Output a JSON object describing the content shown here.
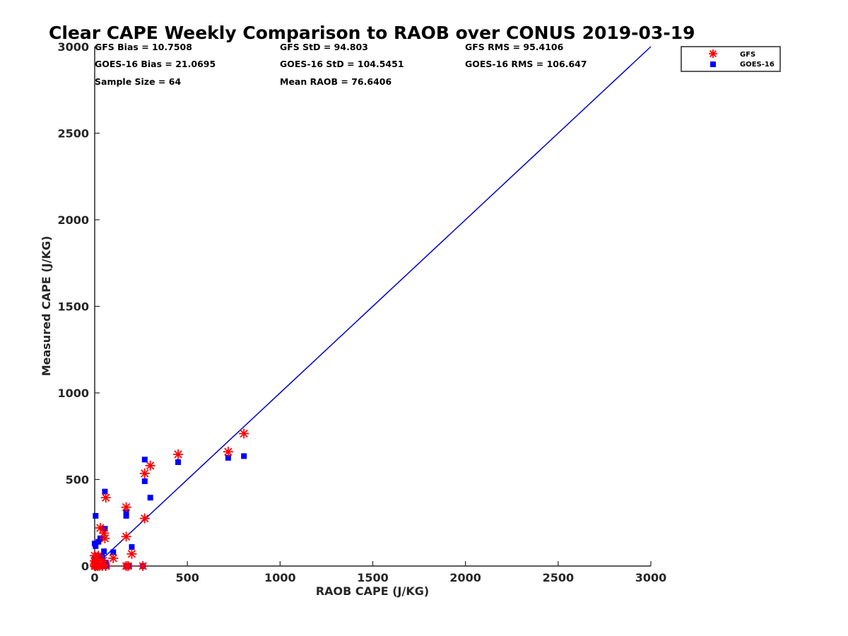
{
  "chart_data": {
    "type": "scatter",
    "title": "Clear CAPE Weekly Comparison to RAOB over CONUS 2019-03-19",
    "xlabel": "RAOB CAPE (J/KG)",
    "ylabel": "Measured CAPE (J/KG)",
    "xlim": [
      0,
      3000
    ],
    "ylim": [
      0,
      3000
    ],
    "x_ticks": [
      "0",
      "500",
      "1000",
      "1500",
      "2000",
      "2500",
      "3000"
    ],
    "y_ticks": [
      "0",
      "500",
      "1000",
      "1500",
      "2000",
      "2500",
      "3000"
    ],
    "grid": false,
    "legend_position": "top-right",
    "stats": [
      "GFS Bias = 10.7508",
      "GFS StD = 94.803",
      "GFS RMS = 95.4106",
      "GOES-16 Bias = 21.0695",
      "GOES-16 StD = 104.5451",
      "GOES-16 RMS = 106.647",
      "Sample Size = 64",
      "Mean RAOB = 76.6406"
    ],
    "reference_line": {
      "type": "one-to-one",
      "x": [
        0,
        3000
      ],
      "y": [
        0,
        3000
      ],
      "color": "#0000cc"
    },
    "series": [
      {
        "name": "GFS",
        "marker": "asterisk",
        "color": "#ff0000",
        "points": [
          [
            0,
            0
          ],
          [
            0,
            10
          ],
          [
            0,
            30
          ],
          [
            0,
            60
          ],
          [
            5,
            0
          ],
          [
            5,
            20
          ],
          [
            10,
            5
          ],
          [
            10,
            40
          ],
          [
            15,
            0
          ],
          [
            15,
            15
          ],
          [
            20,
            60
          ],
          [
            25,
            0
          ],
          [
            30,
            10
          ],
          [
            30,
            220
          ],
          [
            40,
            0
          ],
          [
            45,
            30
          ],
          [
            50,
            190
          ],
          [
            55,
            160
          ],
          [
            60,
            395
          ],
          [
            60,
            0
          ],
          [
            100,
            45
          ],
          [
            170,
            340
          ],
          [
            170,
            170
          ],
          [
            170,
            0
          ],
          [
            180,
            0
          ],
          [
            200,
            70
          ],
          [
            260,
            0
          ],
          [
            270,
            275
          ],
          [
            270,
            535
          ],
          [
            300,
            580
          ],
          [
            450,
            645
          ],
          [
            720,
            660
          ],
          [
            805,
            765
          ]
        ]
      },
      {
        "name": "GOES-16",
        "marker": "square",
        "color": "#0000ff",
        "points": [
          [
            0,
            0
          ],
          [
            0,
            10
          ],
          [
            0,
            40
          ],
          [
            0,
            130
          ],
          [
            5,
            115
          ],
          [
            5,
            290
          ],
          [
            10,
            0
          ],
          [
            10,
            60
          ],
          [
            15,
            20
          ],
          [
            20,
            140
          ],
          [
            25,
            5
          ],
          [
            30,
            160
          ],
          [
            35,
            0
          ],
          [
            40,
            55
          ],
          [
            50,
            85
          ],
          [
            55,
            215
          ],
          [
            55,
            430
          ],
          [
            60,
            20
          ],
          [
            65,
            0
          ],
          [
            100,
            80
          ],
          [
            170,
            290
          ],
          [
            170,
            310
          ],
          [
            170,
            0
          ],
          [
            185,
            0
          ],
          [
            200,
            110
          ],
          [
            260,
            0
          ],
          [
            270,
            615
          ],
          [
            270,
            490
          ],
          [
            300,
            395
          ],
          [
            450,
            600
          ],
          [
            720,
            625
          ],
          [
            805,
            635
          ]
        ]
      }
    ]
  }
}
